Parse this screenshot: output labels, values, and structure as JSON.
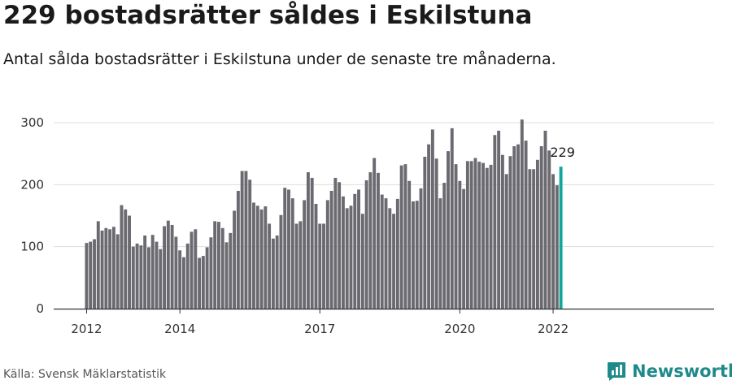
{
  "title": "229 bostadsrätter såldes i Eskilstuna",
  "subtitle": "Antal sålda bostadsrätter i Eskilstuna under de senaste tre månaderna.",
  "source": "Källa: Svensk Mäklarstatistik",
  "brand": {
    "name": "Newsworthy",
    "icon": "newsworthy-logo-icon",
    "color": "#1f8a8a"
  },
  "chart_data": {
    "type": "bar",
    "start": "2012-01",
    "x_ticks": [
      "2012",
      "2014",
      "2017",
      "2020",
      "2022"
    ],
    "y_ticks": [
      0,
      100,
      200,
      300
    ],
    "ylim": [
      0,
      320
    ],
    "grid": true,
    "bar_color": "#6b6a70",
    "highlight_color": "#13a69a",
    "highlight_label": "229",
    "values": [
      106,
      108,
      112,
      141,
      126,
      130,
      128,
      132,
      120,
      167,
      160,
      150,
      100,
      105,
      102,
      118,
      99,
      119,
      108,
      96,
      133,
      142,
      135,
      116,
      94,
      83,
      105,
      124,
      128,
      82,
      85,
      99,
      115,
      141,
      140,
      130,
      107,
      122,
      158,
      190,
      222,
      222,
      208,
      171,
      166,
      160,
      165,
      137,
      113,
      118,
      151,
      195,
      192,
      178,
      137,
      141,
      175,
      220,
      211,
      169,
      137,
      137,
      175,
      190,
      211,
      204,
      181,
      162,
      166,
      185,
      192,
      153,
      207,
      220,
      243,
      219,
      184,
      178,
      162,
      153,
      177,
      231,
      233,
      206,
      173,
      174,
      194,
      245,
      265,
      289,
      242,
      178,
      203,
      254,
      291,
      233,
      206,
      193,
      238,
      238,
      243,
      237,
      235,
      227,
      232,
      280,
      287,
      248,
      217,
      246,
      262,
      265,
      305,
      271,
      225,
      225,
      240,
      262,
      287,
      255,
      217,
      199,
      229
    ]
  }
}
